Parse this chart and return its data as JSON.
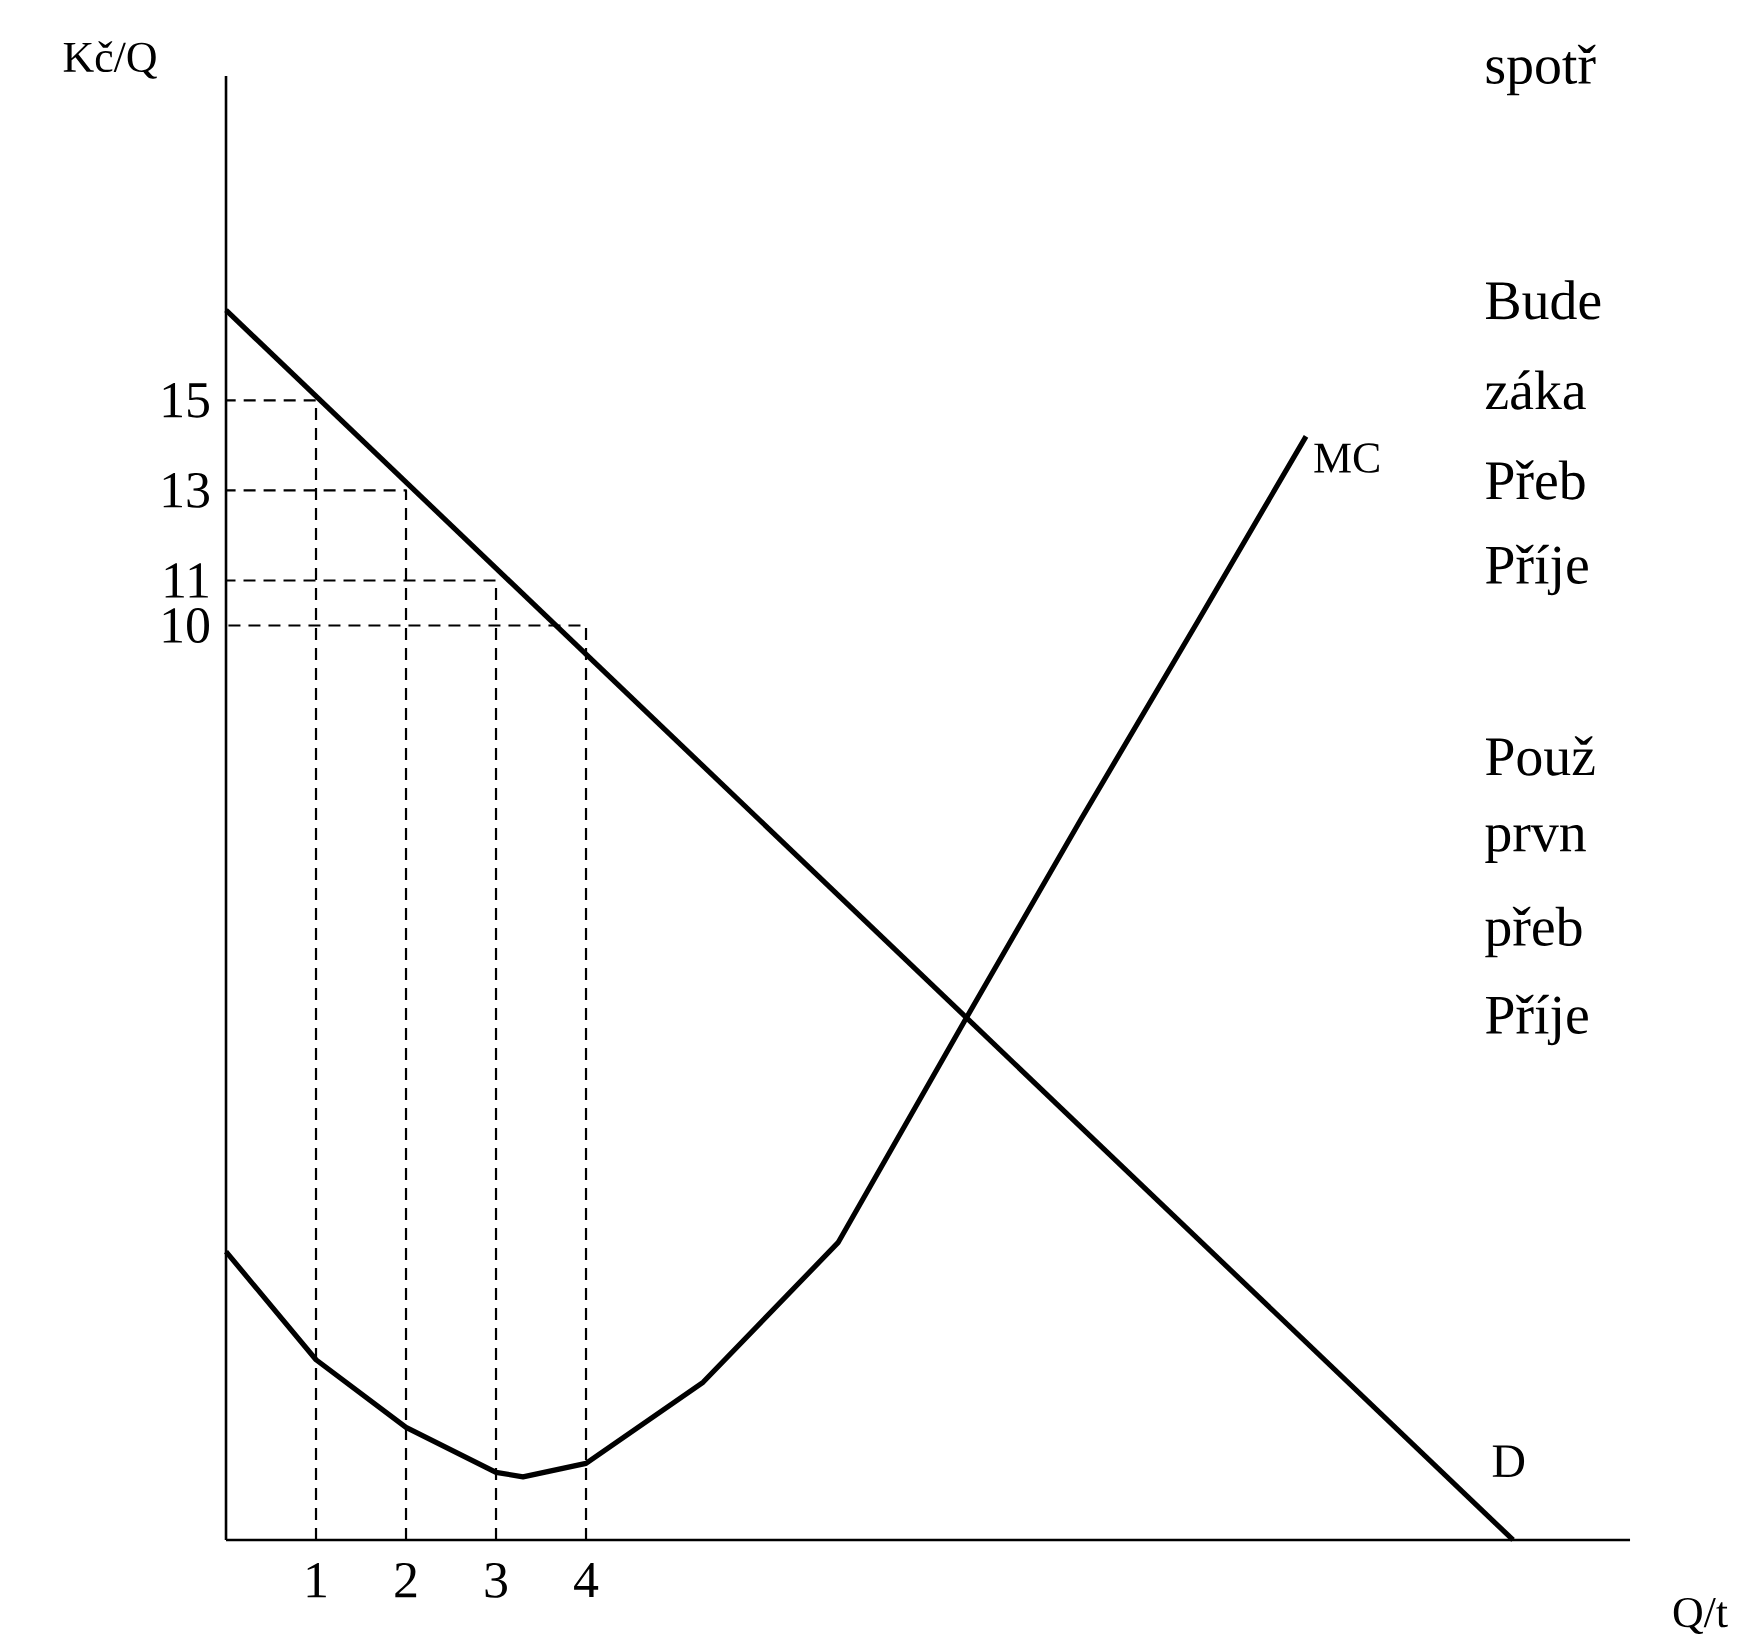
{
  "chart_data": {
    "type": "line",
    "xlabel": "Q/t",
    "ylabel": "Kč/Q",
    "xlim": [
      0,
      15.6
    ],
    "ylim": [
      -10.3,
      22.2
    ],
    "xticks": [
      1,
      2,
      3,
      4
    ],
    "yticks": [
      10,
      11,
      13,
      15
    ],
    "grid": false,
    "marker": "none",
    "line_style": "solid",
    "series": [
      {
        "name": "MC",
        "color": "#000000",
        "x": [
          0,
          1,
          2,
          3,
          3.3,
          4,
          5.3,
          6.8,
          8.2,
          9.5,
          10.8,
          12.0
        ],
        "values": [
          -3.9,
          -6.3,
          -7.8,
          -8.8,
          -8.9,
          -8.6,
          -6.8,
          -3.7,
          1.2,
          5.7,
          10.1,
          14.2
        ]
      },
      {
        "name": "D",
        "color": "#000000",
        "x": [
          0,
          14.3
        ],
        "values": [
          17,
          -10.3
        ]
      },
      {
        "color": "#000000",
        "line_style": "dashed",
        "x": [
          1,
          1,
          0
        ],
        "values": [
          -10.3,
          15,
          15
        ]
      },
      {
        "color": "#000000",
        "line_style": "dashed",
        "x": [
          2,
          2,
          0
        ],
        "values": [
          -10.3,
          13,
          13
        ]
      },
      {
        "color": "#000000",
        "line_style": "dashed",
        "x": [
          3,
          3,
          0
        ],
        "values": [
          -10.3,
          11,
          11
        ]
      },
      {
        "color": "#000000",
        "line_style": "dashed",
        "x": [
          4,
          4,
          0
        ],
        "values": [
          -10.3,
          10,
          10
        ]
      }
    ],
    "annotations": [
      "spotř",
      "Bude",
      "záka",
      "Přeb",
      "Příje",
      "Použ",
      "prvn",
      "přeb",
      "Příje"
    ]
  }
}
